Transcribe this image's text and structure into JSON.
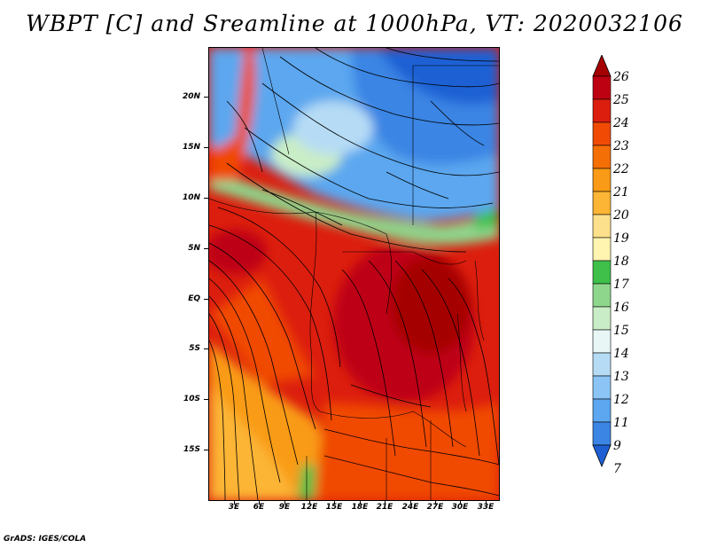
{
  "title": "WBPT [C] and Sreamline at 1000hPa, VT: 2020032106",
  "credit": "GrADS: IGES/COLA",
  "map": {
    "lat_labels": [
      "20N",
      "15N",
      "10N",
      "5N",
      "EQ",
      "5S",
      "10S",
      "15S"
    ],
    "lat_values": [
      20,
      15,
      10,
      5,
      0,
      -5,
      -10,
      -15
    ],
    "lon_labels": [
      "3E",
      "6E",
      "9E",
      "12E",
      "15E",
      "18E",
      "21E",
      "24E",
      "27E",
      "30E",
      "33E"
    ],
    "lon_values": [
      3,
      6,
      9,
      12,
      15,
      18,
      21,
      24,
      27,
      30,
      33
    ],
    "lat_range": [
      -20,
      25
    ],
    "lon_range": [
      0,
      34.5
    ]
  },
  "colorbar": {
    "labels": [
      "26",
      "25",
      "24",
      "23",
      "22",
      "21",
      "20",
      "19",
      "18",
      "17",
      "16",
      "15",
      "14",
      "13",
      "12",
      "11",
      "9",
      "7"
    ],
    "colors": [
      "#a50003",
      "#be0013",
      "#dc1e0e",
      "#f04a04",
      "#f56f07",
      "#f99b17",
      "#fcb535",
      "#fde08b",
      "#fff4b0",
      "#3ec04a",
      "#8ed68c",
      "#c9edc6",
      "#e8f6f6",
      "#b6dcf5",
      "#8cc5f5",
      "#5ca7ef",
      "#3b85e4",
      "#1e60d4"
    ]
  }
}
